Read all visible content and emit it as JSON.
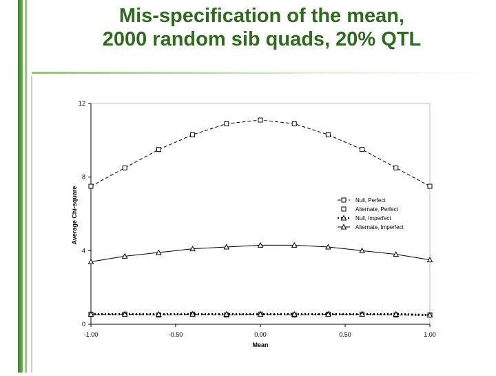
{
  "slide": {
    "title_line1": "Mis-specification of the mean,",
    "title_line2": "2000 random sib quads, 20% QTL",
    "accent_color": "#3f7f30"
  },
  "chart_data": {
    "type": "line",
    "title": "Mis-specification of the mean, 2000 random sib quads, 20% QTL",
    "xlabel": "Mean",
    "ylabel": "Average Chi-square",
    "xlim": [
      -1.0,
      1.0
    ],
    "ylim": [
      0,
      12
    ],
    "x_ticks": [
      -1.0,
      -0.5,
      0.0,
      0.5,
      1.0
    ],
    "x_tick_labels": [
      "-1.00",
      "-0.50",
      "0.00",
      "0.50",
      "1.00"
    ],
    "y_ticks": [
      0,
      4,
      8,
      12
    ],
    "y_tick_labels": [
      "0",
      "4",
      "8",
      "12"
    ],
    "grid": false,
    "legend_position": "center-right",
    "x": [
      -1.0,
      -0.8,
      -0.6,
      -0.4,
      -0.2,
      0.0,
      0.2,
      0.4,
      0.6,
      0.8,
      1.0
    ],
    "series": [
      {
        "name": "Null, Perfect",
        "marker": "square",
        "line": "dash",
        "values": [
          0.55,
          0.55,
          0.5,
          0.55,
          0.5,
          0.55,
          0.5,
          0.55,
          0.55,
          0.5,
          0.5
        ]
      },
      {
        "name": "Alternate, Perfect",
        "marker": "square",
        "line": "dash",
        "values": [
          7.5,
          8.5,
          9.5,
          10.3,
          10.9,
          11.1,
          10.9,
          10.3,
          9.5,
          8.5,
          7.5
        ]
      },
      {
        "name": "Null, Imperfect",
        "marker": "triangle",
        "line": "dot",
        "values": [
          0.55,
          0.55,
          0.55,
          0.55,
          0.55,
          0.55,
          0.55,
          0.55,
          0.55,
          0.55,
          0.5
        ]
      },
      {
        "name": "Alternate, Imperfect",
        "marker": "triangle",
        "line": "solid",
        "values": [
          3.4,
          3.7,
          3.9,
          4.1,
          4.2,
          4.3,
          4.3,
          4.2,
          4.0,
          3.8,
          3.5
        ]
      }
    ]
  }
}
